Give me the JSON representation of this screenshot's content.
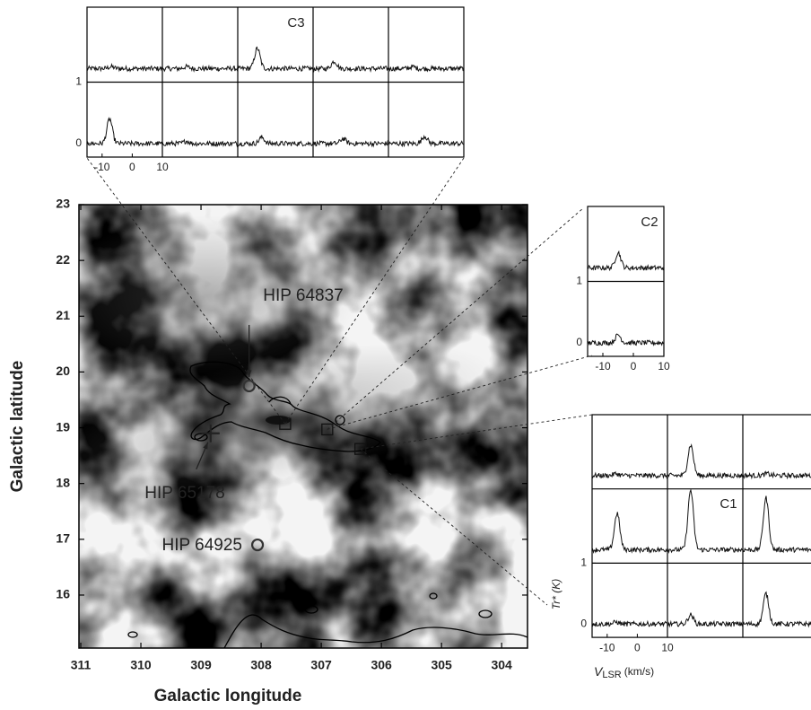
{
  "chart_data": [
    {
      "type": "image",
      "xlabel": "Galactic longitude",
      "ylabel": "Galactic latitude",
      "xlim": [
        311.03,
        303.57
      ],
      "ylim": [
        15.05,
        23
      ],
      "xticks": [
        311,
        310,
        309,
        308,
        307,
        306,
        305,
        304
      ],
      "yticks": [
        16,
        17,
        18,
        19,
        20,
        21,
        22,
        23
      ],
      "stars": [
        {
          "name": "HIP 64837",
          "lon": 308.2,
          "lat": 19.75,
          "marker": "circle"
        },
        {
          "name": "HIP 65178",
          "lon": 308.84,
          "lat": 18.9,
          "marker": "cross"
        },
        {
          "name": "HIP 64925",
          "lon": 308.06,
          "lat": 16.9,
          "marker": "circle"
        }
      ]
    },
    {
      "type": "spectra-grid",
      "name": "C3",
      "region": {
        "lon": 307.6,
        "lat": 19.07
      },
      "xlim": [
        -15,
        10
      ],
      "xticks": [
        -10,
        0,
        10
      ],
      "ylim": [
        -0.22,
        1
      ],
      "yticks": [
        0,
        1
      ],
      "rows": [
        [
          {
            "velocity": -7,
            "peak": 0.03
          },
          {
            "velocity": -7,
            "peak": 0.03
          },
          {
            "velocity": -8.5,
            "peak": 0.33
          },
          {
            "velocity": -8,
            "peak": 0.12
          },
          {
            "velocity": -7,
            "peak": 0.03
          }
        ],
        [
          {
            "velocity": -7.5,
            "peak": 0.4
          },
          {
            "velocity": -7,
            "peak": 0.04
          },
          {
            "velocity": -7,
            "peak": 0.1
          },
          {
            "velocity": -5,
            "peak": 0.08
          },
          {
            "velocity": -3,
            "peak": 0.12
          }
        ]
      ]
    },
    {
      "type": "spectra-grid",
      "name": "C2",
      "region": {
        "lon": 306.9,
        "lat": 18.97
      },
      "xlim": [
        -15,
        10
      ],
      "xticks": [
        -10,
        0,
        10
      ],
      "ylim": [
        -0.22,
        1
      ],
      "yticks": [
        0,
        1
      ],
      "rows": [
        [
          {
            "velocity": -5,
            "peak": 0.25
          }
        ],
        [
          {
            "velocity": -5,
            "peak": 0.13
          }
        ]
      ]
    },
    {
      "type": "spectra-grid",
      "name": "C1",
      "region": {
        "lon": 306.35,
        "lat": 18.62
      },
      "xlim": [
        -15,
        10
      ],
      "xticks": [
        -10,
        0,
        10
      ],
      "ylim": [
        -0.22,
        1
      ],
      "yticks": [
        0,
        1
      ],
      "xlabel": {
        "symbol": "V",
        "subscript": "LSR",
        "unit": "(km/s)"
      },
      "ylabel": "Tr* (K)",
      "rows": [
        [
          {
            "velocity": -7,
            "peak": 0.03
          },
          {
            "velocity": -7.3,
            "peak": 0.5
          },
          {
            "velocity": -7,
            "peak": 0.03
          }
        ],
        [
          {
            "velocity": -6.7,
            "peak": 0.6
          },
          {
            "velocity": -7.3,
            "peak": 0.98
          },
          {
            "velocity": -7.3,
            "peak": 0.85
          }
        ],
        [
          {
            "velocity": -7,
            "peak": 0.03
          },
          {
            "velocity": -7.3,
            "peak": 0.15
          },
          {
            "velocity": -7.3,
            "peak": 0.5
          }
        ]
      ]
    }
  ]
}
